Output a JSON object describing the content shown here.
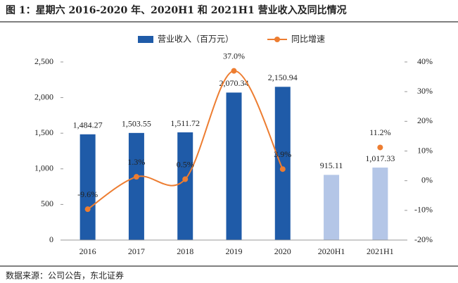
{
  "chart_data": {
    "type": "bar_line",
    "title": "图 1：星期六 2016-2020 年、2020H1 和 2021H1 营业收入及同比情况",
    "source": "数据来源：公司公告，东北证券",
    "categories": [
      "2016",
      "2017",
      "2018",
      "2019",
      "2020",
      "2020H1",
      "2021H1"
    ],
    "series": [
      {
        "name": "营业收入（百万元）",
        "type": "bar",
        "color": "#1f5ba8",
        "colors": [
          "#1f5ba8",
          "#1f5ba8",
          "#1f5ba8",
          "#1f5ba8",
          "#1f5ba8",
          "#b4c6e7",
          "#b4c6e7"
        ],
        "values": [
          1484.27,
          1503.55,
          1511.72,
          2070.34,
          2150.94,
          915.11,
          1017.33
        ],
        "value_labels": [
          "1,484.27",
          "1,503.55",
          "1,511.72",
          "2,070.34",
          "2,150.94",
          "915.11",
          "1,017.33"
        ]
      },
      {
        "name": "同比增速",
        "type": "line",
        "axis": "y2",
        "color": "#ed7d31",
        "values": [
          -9.6,
          1.3,
          0.5,
          37.0,
          3.9,
          null,
          11.2
        ],
        "value_labels": [
          "-9.6%",
          "1.3%",
          "0.5%",
          "37.0%",
          "3.9%",
          null,
          "11.2%"
        ]
      }
    ],
    "ylim": [
      0,
      2500
    ],
    "yticks": [
      0,
      500,
      {
        "value": 1000,
        "label": "1,000"
      },
      {
        "value": 1500,
        "label": "1,500"
      },
      {
        "value": 2000,
        "label": "2,000"
      },
      {
        "value": 2500,
        "label": "2,500"
      }
    ],
    "y2lim": [
      -20,
      40
    ],
    "y2ticks": [
      {
        "value": -20,
        "label": "-20%"
      },
      {
        "value": -10,
        "label": "-10%"
      },
      {
        "value": 0,
        "label": "0%"
      },
      {
        "value": 10,
        "label": "10%"
      },
      {
        "value": 20,
        "label": "20%"
      },
      {
        "value": 30,
        "label": "30%"
      },
      {
        "value": 40,
        "label": "40%"
      }
    ],
    "legend": "top",
    "grid": false
  }
}
